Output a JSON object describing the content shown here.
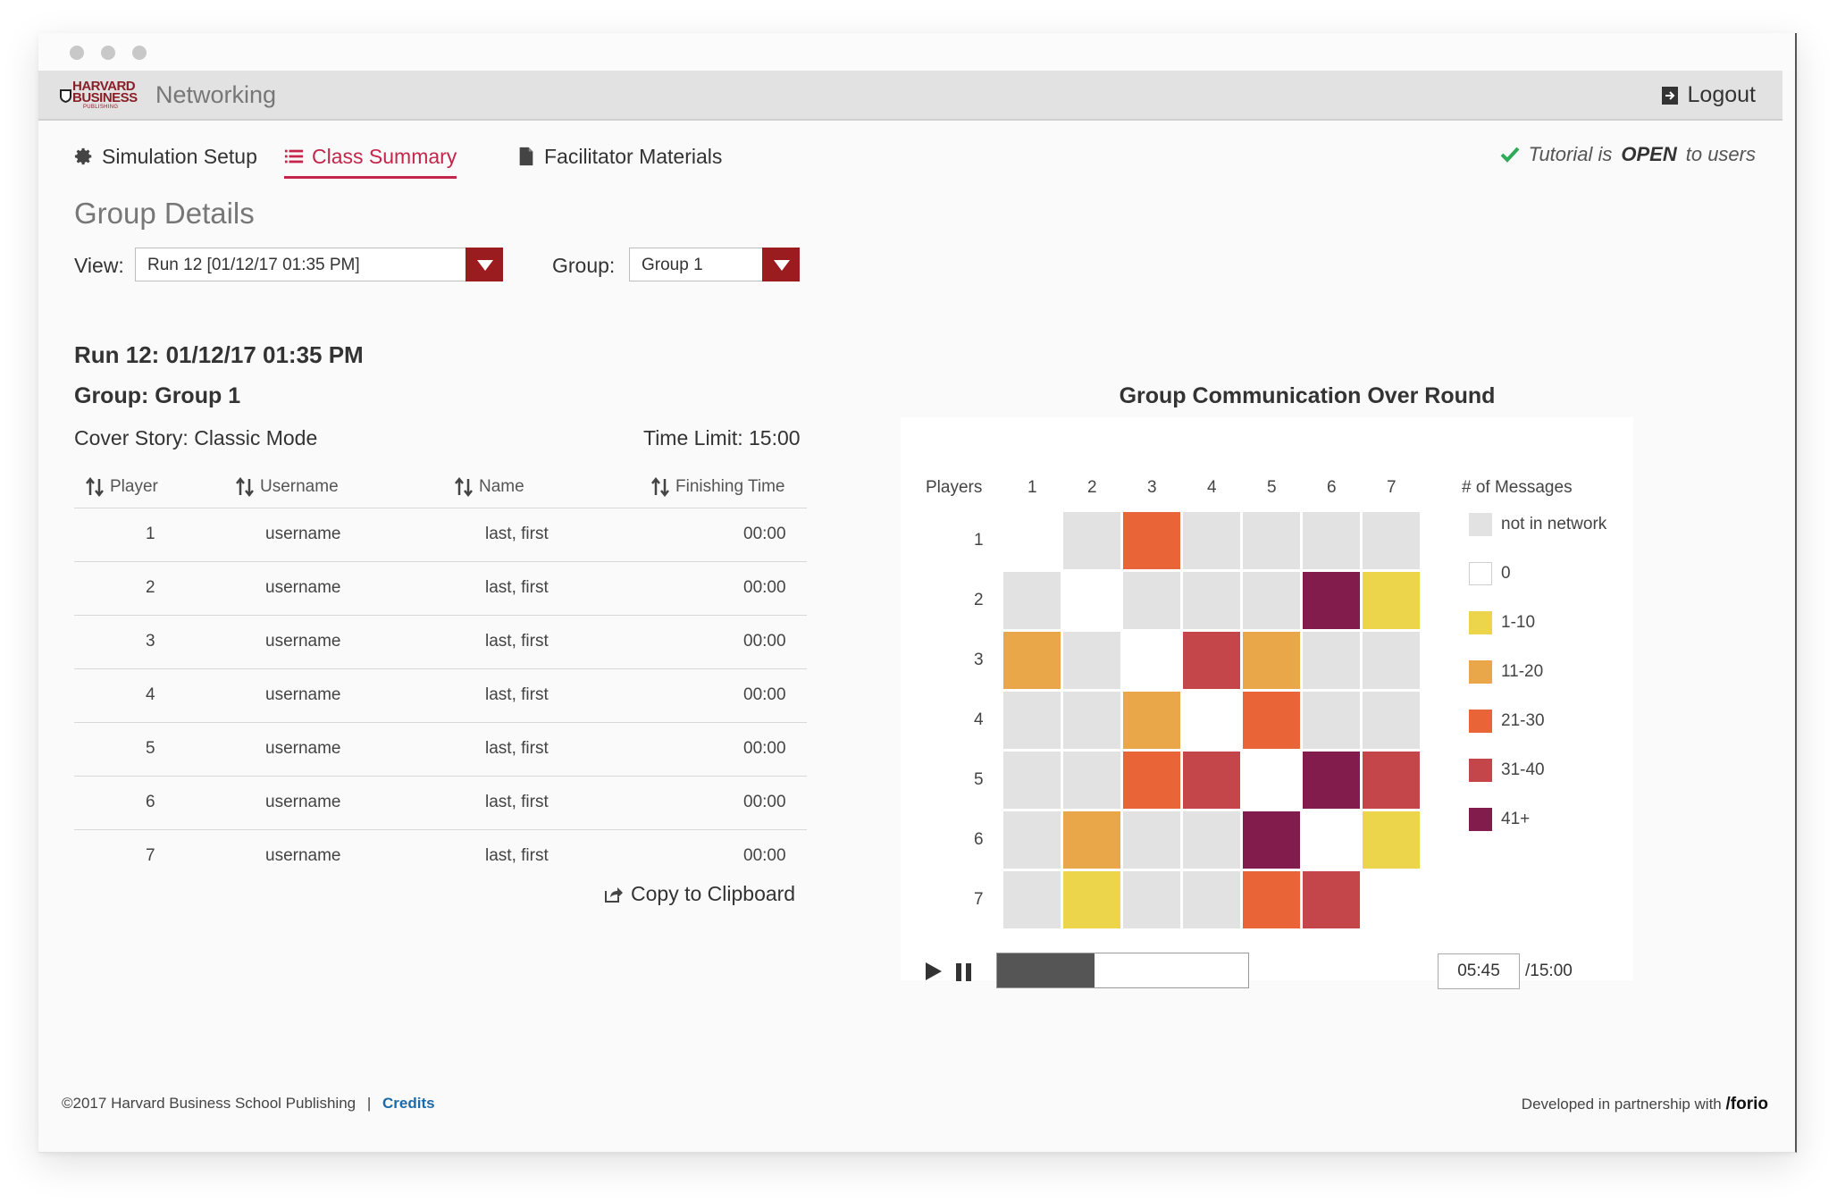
{
  "header": {
    "logo": {
      "line1": "HARVARD",
      "line2": "BUSINESS",
      "line3": "PUBLISHING"
    },
    "app_name": "Networking",
    "logout_label": "Logout",
    "icons": {
      "logout": "logout-icon"
    }
  },
  "nav": {
    "items": [
      {
        "label": "Simulation Setup",
        "icon": "gear-icon",
        "active": false
      },
      {
        "label": "Class Summary",
        "icon": "list-icon",
        "active": true
      },
      {
        "label": "Facilitator Materials",
        "icon": "document-icon",
        "active": false
      }
    ],
    "tutorial": {
      "prefix": "Tutorial is",
      "state": "OPEN",
      "suffix": "to users",
      "icon": "check-icon"
    }
  },
  "group_details": {
    "heading": "Group Details",
    "view_label": "View:",
    "view_value": "Run 12 [01/12/17 01:35 PM]",
    "group_label": "Group:",
    "group_value": "Group 1"
  },
  "run": {
    "title": "Run 12: 01/12/17 01:35 PM",
    "group": "Group: Group 1",
    "cover_story": "Cover Story: Classic Mode",
    "time_limit": "Time Limit: 15:00"
  },
  "table": {
    "columns": [
      "Player",
      "Username",
      "Name",
      "Finishing Time"
    ],
    "rows": [
      {
        "player": "1",
        "username": "username",
        "name": "last, first",
        "time": "00:00"
      },
      {
        "player": "2",
        "username": "username",
        "name": "last, first",
        "time": "00:00"
      },
      {
        "player": "3",
        "username": "username",
        "name": "last, first",
        "time": "00:00"
      },
      {
        "player": "4",
        "username": "username",
        "name": "last, first",
        "time": "00:00"
      },
      {
        "player": "5",
        "username": "username",
        "name": "last, first",
        "time": "00:00"
      },
      {
        "player": "6",
        "username": "username",
        "name": "last, first",
        "time": "00:00"
      },
      {
        "player": "7",
        "username": "username",
        "name": "last, first",
        "time": "00:00"
      }
    ],
    "copy_label": "Copy to Clipboard"
  },
  "chart": {
    "title": "Group Communication Over Round",
    "players_label": "Players",
    "columns": [
      "1",
      "2",
      "3",
      "4",
      "5",
      "6",
      "7"
    ],
    "rows": [
      "1",
      "2",
      "3",
      "4",
      "5",
      "6",
      "7"
    ],
    "legend_title": "# of Messages",
    "legend": [
      {
        "key": "nin",
        "label": "not in network",
        "color": "#e2e2e2"
      },
      {
        "key": "zero",
        "label": "0",
        "color": "#ffffff"
      },
      {
        "key": "c1",
        "label": "1-10",
        "color": "#ecd44b"
      },
      {
        "key": "c2",
        "label": "11-20",
        "color": "#e9a74a"
      },
      {
        "key": "c3",
        "label": "21-30",
        "color": "#e96437"
      },
      {
        "key": "c4",
        "label": "31-40",
        "color": "#c4464a"
      },
      {
        "key": "c5",
        "label": "41+",
        "color": "#811c4d"
      }
    ],
    "matrix": [
      [
        "none",
        "nin",
        "c3",
        "nin",
        "nin",
        "nin",
        "nin"
      ],
      [
        "nin",
        "zero",
        "nin",
        "nin",
        "nin",
        "c5",
        "c1"
      ],
      [
        "c2",
        "nin",
        "zero",
        "c4",
        "c2",
        "nin",
        "nin"
      ],
      [
        "nin",
        "nin",
        "c2",
        "zero",
        "c3",
        "nin",
        "nin"
      ],
      [
        "nin",
        "nin",
        "c3",
        "c4",
        "zero",
        "c5",
        "c4"
      ],
      [
        "nin",
        "c2",
        "nin",
        "nin",
        "c5",
        "zero",
        "c1"
      ],
      [
        "nin",
        "c1",
        "nin",
        "nin",
        "c3",
        "c4",
        "none"
      ]
    ],
    "playback": {
      "play_icon": "play-icon",
      "pause_icon": "pause-icon",
      "progress_fraction": 0.387,
      "current_time": "05:45",
      "total_time": "/15:00"
    }
  },
  "footer": {
    "copyright": "©2017 Harvard Business School Publishing",
    "separator": "|",
    "credits": "Credits",
    "partner_text": "Developed in partnership with",
    "partner_name": "/forio"
  }
}
